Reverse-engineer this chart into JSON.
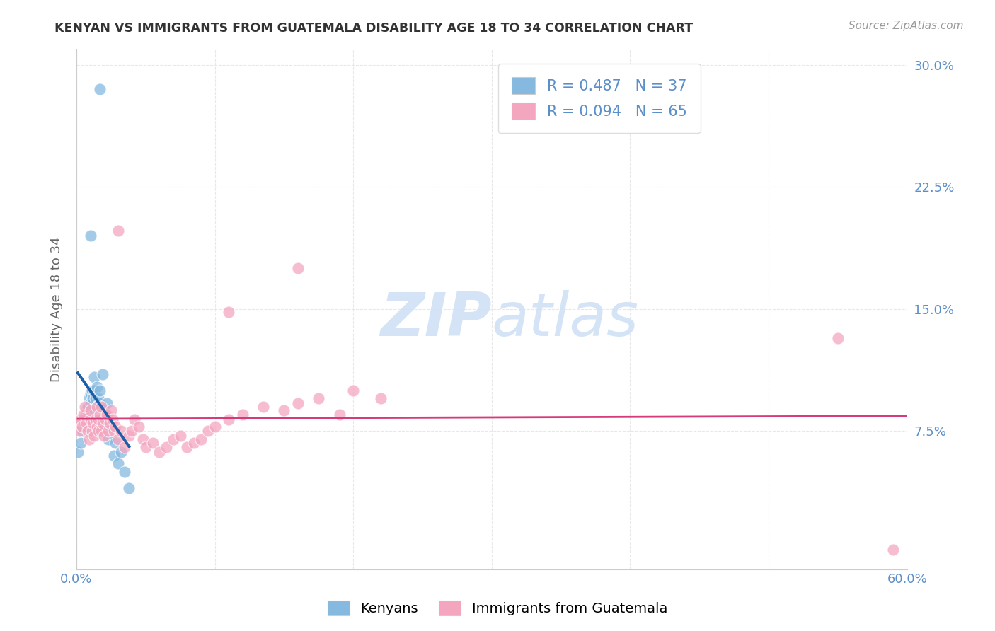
{
  "title": "KENYAN VS IMMIGRANTS FROM GUATEMALA DISABILITY AGE 18 TO 34 CORRELATION CHART",
  "source": "Source: ZipAtlas.com",
  "ylabel": "Disability Age 18 to 34",
  "xlim": [
    0.0,
    0.6
  ],
  "ylim": [
    -0.01,
    0.31
  ],
  "ytick_positions": [
    0.075,
    0.15,
    0.225,
    0.3
  ],
  "ytick_labels": [
    "7.5%",
    "15.0%",
    "22.5%",
    "30.0%"
  ],
  "legend_labels": [
    "Kenyans",
    "Immigrants from Guatemala"
  ],
  "R_kenyan": 0.487,
  "N_kenyan": 37,
  "R_guatemala": 0.094,
  "N_guatemala": 65,
  "color_kenyan": "#85b9e0",
  "color_guatemala": "#f4a6bf",
  "trendline_kenyan_color": "#1a5fa8",
  "trendline_guatemala_color": "#d63a7a",
  "dashed_line_color": "#b8cfe8",
  "watermark_color": "#cde0f5",
  "kenyan_x": [
    0.001,
    0.003,
    0.004,
    0.006,
    0.007,
    0.008,
    0.009,
    0.01,
    0.01,
    0.011,
    0.012,
    0.012,
    0.013,
    0.013,
    0.014,
    0.015,
    0.015,
    0.016,
    0.016,
    0.017,
    0.017,
    0.018,
    0.018,
    0.019,
    0.02,
    0.02,
    0.021,
    0.022,
    0.023,
    0.024,
    0.025,
    0.027,
    0.028,
    0.03,
    0.032,
    0.035,
    0.038
  ],
  "kenyan_y": [
    0.062,
    0.068,
    0.075,
    0.082,
    0.088,
    0.09,
    0.095,
    0.092,
    0.098,
    0.1,
    0.085,
    0.095,
    0.1,
    0.108,
    0.095,
    0.09,
    0.102,
    0.088,
    0.095,
    0.092,
    0.1,
    0.082,
    0.09,
    0.11,
    0.078,
    0.088,
    0.085,
    0.092,
    0.07,
    0.078,
    0.078,
    0.06,
    0.068,
    0.055,
    0.062,
    0.05,
    0.04
  ],
  "kenyan_outlier_x": [
    0.017
  ],
  "kenyan_outlier_y": [
    0.285
  ],
  "kenyan_high_x": [
    0.01
  ],
  "kenyan_high_y": [
    0.195
  ],
  "guatemala_x": [
    0.001,
    0.002,
    0.003,
    0.004,
    0.005,
    0.006,
    0.007,
    0.008,
    0.009,
    0.01,
    0.01,
    0.011,
    0.012,
    0.013,
    0.014,
    0.015,
    0.015,
    0.016,
    0.016,
    0.017,
    0.018,
    0.018,
    0.019,
    0.02,
    0.021,
    0.022,
    0.023,
    0.024,
    0.025,
    0.026,
    0.027,
    0.028,
    0.03,
    0.032,
    0.035,
    0.038,
    0.04,
    0.042,
    0.045,
    0.048,
    0.05,
    0.055,
    0.06,
    0.065,
    0.07,
    0.075,
    0.08,
    0.085,
    0.09,
    0.095,
    0.1,
    0.11,
    0.12,
    0.135,
    0.15,
    0.16,
    0.175,
    0.19,
    0.2,
    0.22,
    0.03,
    0.11,
    0.16,
    0.55,
    0.59
  ],
  "guatemala_y": [
    0.08,
    0.075,
    0.082,
    0.078,
    0.085,
    0.09,
    0.08,
    0.075,
    0.07,
    0.082,
    0.088,
    0.075,
    0.08,
    0.072,
    0.082,
    0.09,
    0.078,
    0.075,
    0.082,
    0.085,
    0.09,
    0.075,
    0.08,
    0.072,
    0.082,
    0.085,
    0.075,
    0.08,
    0.088,
    0.082,
    0.075,
    0.078,
    0.07,
    0.075,
    0.065,
    0.072,
    0.075,
    0.082,
    0.078,
    0.07,
    0.065,
    0.068,
    0.062,
    0.065,
    0.07,
    0.072,
    0.065,
    0.068,
    0.07,
    0.075,
    0.078,
    0.082,
    0.085,
    0.09,
    0.088,
    0.092,
    0.095,
    0.085,
    0.1,
    0.095,
    0.198,
    0.148,
    0.175,
    0.132,
    0.002
  ],
  "background_color": "#ffffff",
  "grid_color": "#e8e8e8"
}
